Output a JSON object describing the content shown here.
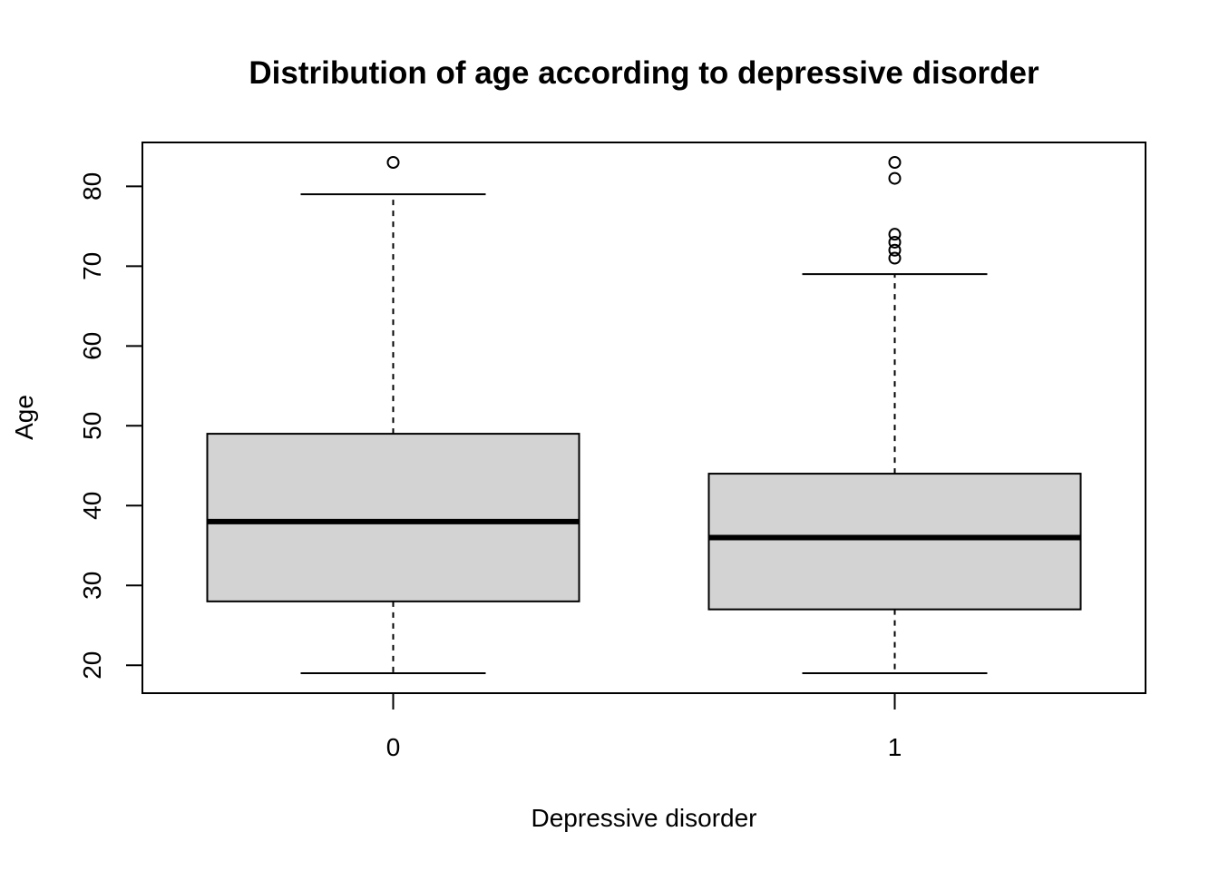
{
  "chart_data": {
    "type": "boxplot",
    "title": "Distribution of age according to depressive disorder",
    "xlabel": "Depressive disorder",
    "ylabel": "Age",
    "categories": [
      "0",
      "1"
    ],
    "yticks": [
      20,
      30,
      40,
      50,
      60,
      70,
      80
    ],
    "ylim": [
      16.5,
      85.5
    ],
    "grid": false,
    "legend": "none",
    "box_fill": "#d3d3d3",
    "line_color": "#000000",
    "boxes": [
      {
        "category": "0",
        "whisker_low": 19,
        "q1": 28,
        "median": 38,
        "q3": 49,
        "whisker_high": 79,
        "outliers": [
          83
        ]
      },
      {
        "category": "1",
        "whisker_low": 19,
        "q1": 27,
        "median": 36,
        "q3": 44,
        "whisker_high": 69,
        "outliers": [
          71,
          72,
          73,
          74,
          81,
          83
        ]
      }
    ]
  }
}
